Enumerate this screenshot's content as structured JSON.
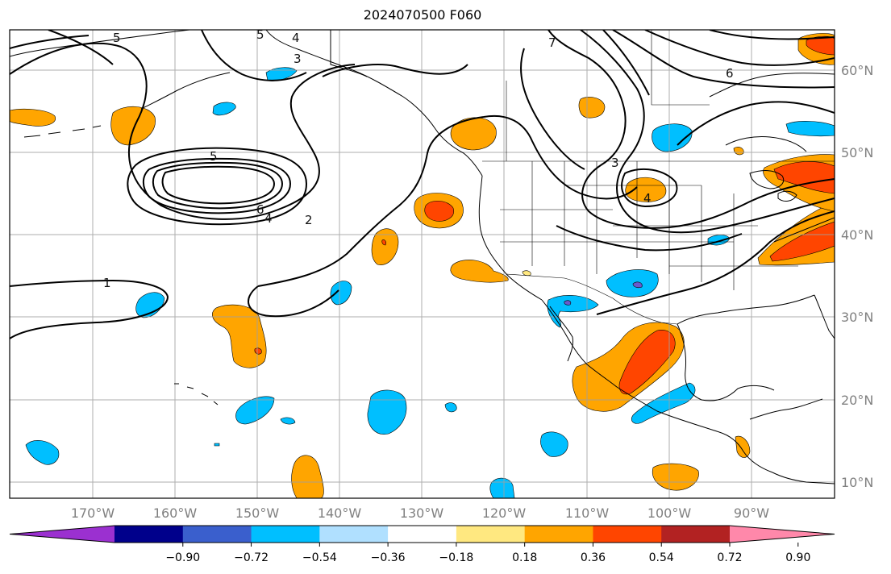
{
  "title": "2024070500 F060",
  "lon_labels": [
    "170°W",
    "160°W",
    "150°W",
    "140°W",
    "130°W",
    "120°W",
    "110°W",
    "100°W",
    "90°W"
  ],
  "lat_labels": [
    "60°N",
    "50°N",
    "40°N",
    "30°N",
    "20°N",
    "10°N"
  ],
  "colorbar": {
    "ticks": [
      "−0.90",
      "−0.72",
      "−0.54",
      "−0.36",
      "−0.18",
      "0.18",
      "0.36",
      "0.54",
      "0.72",
      "0.90"
    ],
    "colors": [
      "#9b30d0",
      "#00008b",
      "#3a5fcd",
      "#00bfff",
      "#b0e0ff",
      "#ffffff",
      "#ffe880",
      "#ffa500",
      "#ff4500",
      "#b22222",
      "#ff88aa"
    ]
  },
  "contour_labels": [
    "5",
    "5",
    "4",
    "3",
    "7",
    "6",
    "5",
    "6",
    "4",
    "2",
    "1",
    "3",
    "4"
  ],
  "shading_colors": {
    "orange": "#ffa500",
    "red": "#ff4500",
    "cyan": "#00bfff",
    "purple": "#6a5acd"
  }
}
